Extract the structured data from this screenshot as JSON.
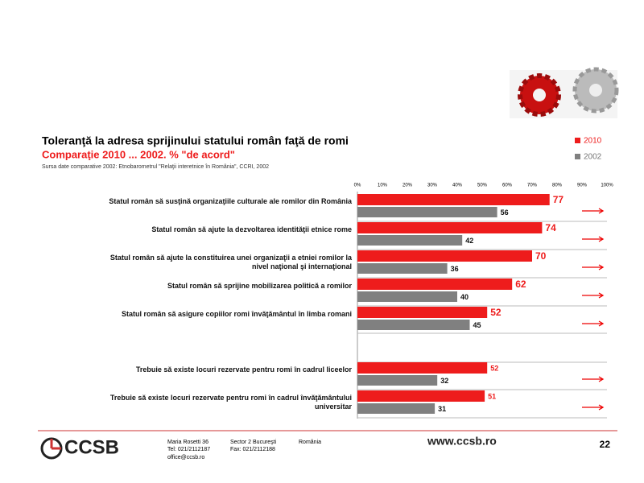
{
  "chart_data": {
    "type": "bar",
    "orientation": "horizontal",
    "title": "Toleranţă la adresa sprijinului statului român faţă de romi",
    "subtitle": "Comparaţie 2010 ... 2002. % \"de acord\"",
    "source": "Sursa date comparative 2002: Etnobarometrul \"Relaţii interetnice în România\", CCRI, 2002",
    "categories": [
      "Statul român să susţină organizaţiile culturale ale romilor din România",
      "Statul român să ajute la dezvoltarea identităţii etnice rome",
      "Statul român să ajute la constituirea unei organizaţii a etniei romilor la nivel naţional şi internaţional",
      "Statul român să sprijine mobilizarea politică a romilor",
      "Statul român să asigure copiilor romi învăţământul în limba romani",
      "Trebuie să existe locuri rezervate pentru romi în cadrul liceelor",
      "Trebuie să existe locuri rezervate pentru romi în cadrul învăţământului universitar"
    ],
    "series": [
      {
        "name": "2010",
        "color": "#ee1c1c",
        "values": [
          77,
          74,
          70,
          62,
          52,
          52,
          51
        ]
      },
      {
        "name": "2002",
        "color": "#808080",
        "values": [
          56,
          42,
          36,
          40,
          45,
          32,
          31
        ]
      }
    ],
    "xlim": [
      0,
      100
    ],
    "xticks": [
      {
        "value": 0,
        "label": "0%"
      },
      {
        "value": 10,
        "label": "10%"
      },
      {
        "value": 20,
        "label": "20%"
      },
      {
        "value": 30,
        "label": "30%"
      },
      {
        "value": 40,
        "label": "40%"
      },
      {
        "value": 50,
        "label": "50%"
      },
      {
        "value": 60,
        "label": "60%"
      },
      {
        "value": 70,
        "label": "70%"
      },
      {
        "value": 80,
        "label": "80%"
      },
      {
        "value": 90,
        "label": "90%"
      },
      {
        "value": 100,
        "label": "100%"
      }
    ],
    "legend": "top-right"
  },
  "footer": {
    "logo": "CCSB",
    "address": [
      "Maria Rosetti 36",
      "Sector 2  Bucureşti",
      "România"
    ],
    "contact": [
      "Tel: 021/2112187",
      "Fax: 021/2112188"
    ],
    "email": "office@ccsb.ro",
    "website": "www.ccsb.ro",
    "page": "22"
  }
}
